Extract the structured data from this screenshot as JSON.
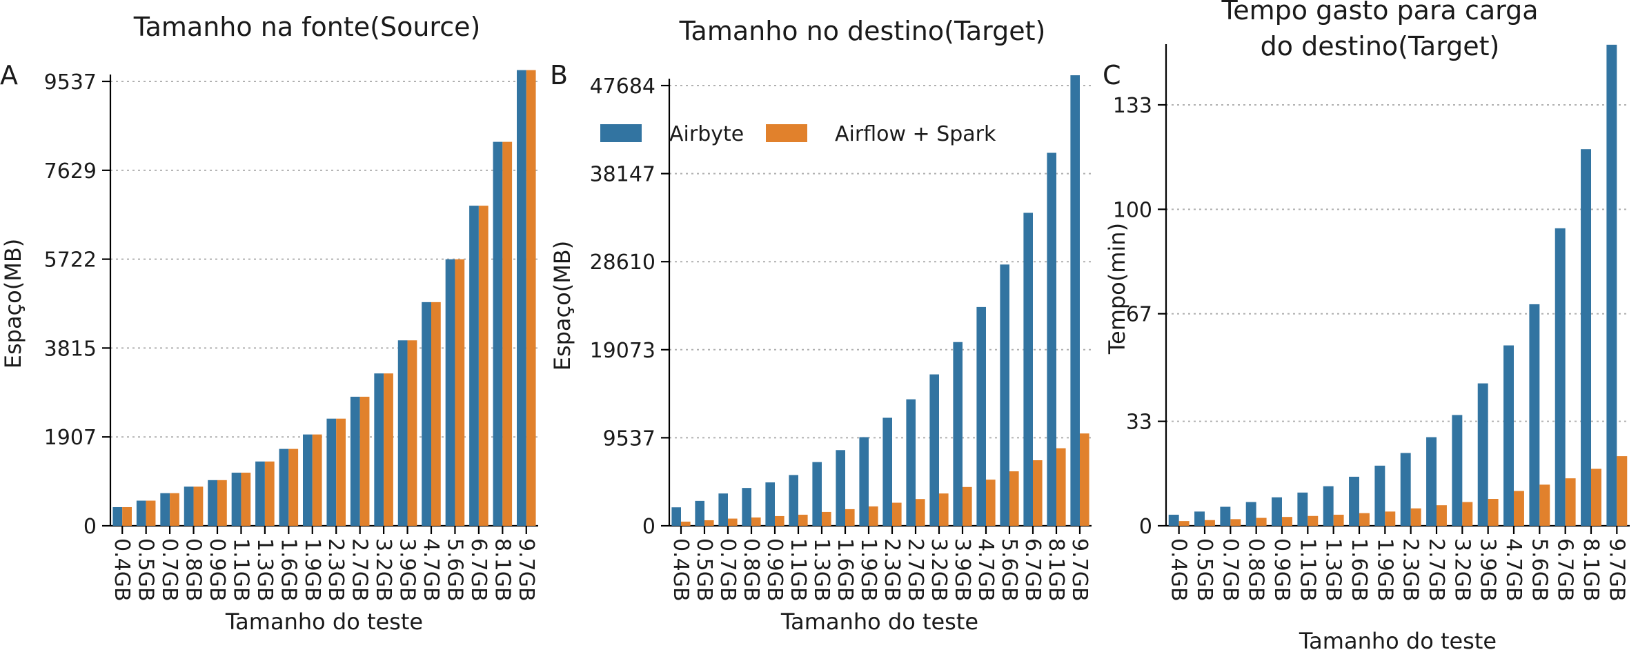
{
  "chart_data": [
    {
      "panel": "A",
      "type": "bar",
      "title": [
        "Tamanho na fonte(Source)"
      ],
      "xlabel": "Tamanho do teste",
      "ylabel": "Espaço(MB)",
      "categories": [
        "0.4GB",
        "0.5GB",
        "0.7GB",
        "0.8GB",
        "0.9GB",
        "1.1GB",
        "1.3GB",
        "1.6GB",
        "1.9GB",
        "2.3GB",
        "2.7GB",
        "3.2GB",
        "3.9GB",
        "4.7GB",
        "5.6GB",
        "6.7GB",
        "8.1GB",
        "9.7GB"
      ],
      "yticks": [
        0,
        1907,
        3815,
        5722,
        7629,
        9537
      ],
      "ylim": [
        0,
        9537
      ],
      "series": [
        {
          "name": "Airbyte",
          "values": [
            400,
            540,
            700,
            840,
            980,
            1140,
            1380,
            1650,
            1960,
            2300,
            2770,
            3270,
            3980,
            4800,
            5720,
            6870,
            8240,
            9780
          ]
        },
        {
          "name": "Airflow + Spark",
          "values": [
            400,
            540,
            700,
            840,
            980,
            1140,
            1380,
            1650,
            1960,
            2300,
            2770,
            3270,
            3980,
            4800,
            5720,
            6870,
            8240,
            9780
          ]
        }
      ]
    },
    {
      "panel": "B",
      "type": "bar",
      "title": [
        "Tamanho no destino(Target)"
      ],
      "xlabel": "Tamanho do teste",
      "ylabel": "Espaço(MB)",
      "categories": [
        "0.4GB",
        "0.5GB",
        "0.7GB",
        "0.8GB",
        "0.9GB",
        "1.1GB",
        "1.3GB",
        "1.6GB",
        "1.9GB",
        "2.3GB",
        "2.7GB",
        "3.2GB",
        "3.9GB",
        "4.7GB",
        "5.6GB",
        "6.7GB",
        "8.1GB",
        "9.7GB"
      ],
      "yticks": [
        0,
        9537,
        19073,
        28610,
        38147,
        47684
      ],
      "ylim": [
        0,
        47684
      ],
      "legend": {
        "position": "upper-left"
      },
      "series": [
        {
          "name": "Airbyte",
          "values": [
            2000,
            2700,
            3500,
            4100,
            4700,
            5500,
            6900,
            8200,
            9600,
            11700,
            13700,
            16400,
            19900,
            23700,
            28300,
            33900,
            40400,
            48800
          ]
        },
        {
          "name": "Airflow + Spark",
          "values": [
            450,
            600,
            780,
            900,
            1050,
            1200,
            1500,
            1800,
            2100,
            2500,
            2900,
            3500,
            4200,
            5000,
            5900,
            7100,
            8400,
            10000
          ]
        }
      ]
    },
    {
      "panel": "C",
      "type": "bar",
      "title": [
        "Tempo gasto para carga",
        "do destino(Target)"
      ],
      "xlabel": "Tamanho do teste",
      "ylabel": "Tempo(min)",
      "categories": [
        "0.4GB",
        "0.5GB",
        "0.7GB",
        "0.8GB",
        "0.9GB",
        "1.1GB",
        "1.3GB",
        "1.6GB",
        "1.9GB",
        "2.3GB",
        "2.7GB",
        "3.2GB",
        "3.9GB",
        "4.7GB",
        "5.6GB",
        "6.7GB",
        "8.1GB",
        "9.7GB"
      ],
      "yticks": [
        0,
        33,
        67,
        100,
        133
      ],
      "ylim": [
        0,
        150
      ],
      "series": [
        {
          "name": "Airbyte",
          "values": [
            3.5,
            4.5,
            6,
            7.5,
            9,
            10.5,
            12.5,
            15.5,
            19,
            23,
            28,
            35,
            45,
            57,
            70,
            94,
            119,
            152
          ]
        },
        {
          "name": "Airflow + Spark",
          "values": [
            1.5,
            1.8,
            2.1,
            2.5,
            2.8,
            3.1,
            3.5,
            4,
            4.5,
            5.5,
            6.5,
            7.5,
            8.5,
            11,
            13,
            15,
            18,
            22
          ]
        }
      ]
    }
  ],
  "colors": {
    "Airbyte": "#3274a1",
    "Airflow + Spark": "#e1812c"
  }
}
